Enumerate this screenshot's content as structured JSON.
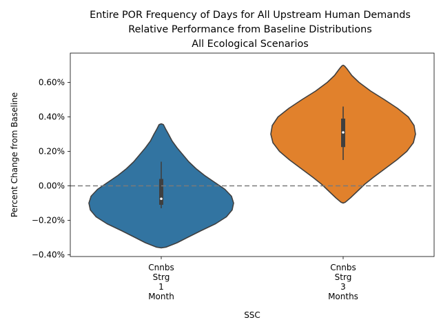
{
  "chart_data": {
    "type": "violin",
    "title_lines": [
      "Entire POR Frequency of Days for All Upstream Human Demands",
      "Relative Performance from Baseline Distributions",
      "All Ecological Scenarios"
    ],
    "xlabel": "SSC",
    "ylabel": "Percent Change from Baseline",
    "ylim": [
      -0.41,
      0.77
    ],
    "yticks": [
      -0.4,
      -0.2,
      0.0,
      0.2,
      0.4,
      0.6
    ],
    "ytick_labels": [
      "−0.40%",
      "−0.20%",
      "0.00%",
      "0.20%",
      "0.40%",
      "0.60%"
    ],
    "reference_line": 0.0,
    "categories": [
      {
        "label_lines": [
          "Cnnbs",
          "Strg",
          "1",
          "Month"
        ],
        "color": "#3274a1",
        "min": -0.13,
        "q1": -0.11,
        "median": -0.075,
        "q3": 0.04,
        "max": 0.14,
        "violin_profile": [
          [
            -0.36,
            0.0
          ],
          [
            -0.355,
            0.07
          ],
          [
            -0.33,
            0.22
          ],
          [
            -0.3,
            0.36
          ],
          [
            -0.26,
            0.55
          ],
          [
            -0.22,
            0.75
          ],
          [
            -0.18,
            0.9
          ],
          [
            -0.14,
            0.98
          ],
          [
            -0.1,
            1.0
          ],
          [
            -0.06,
            0.97
          ],
          [
            -0.02,
            0.88
          ],
          [
            0.02,
            0.74
          ],
          [
            0.06,
            0.6
          ],
          [
            0.1,
            0.48
          ],
          [
            0.14,
            0.38
          ],
          [
            0.18,
            0.3
          ],
          [
            0.22,
            0.22
          ],
          [
            0.26,
            0.15
          ],
          [
            0.3,
            0.1
          ],
          [
            0.33,
            0.06
          ],
          [
            0.355,
            0.03
          ],
          [
            0.36,
            0.0
          ]
        ]
      },
      {
        "label_lines": [
          "Cnnbs",
          "Strg",
          "3",
          "Months"
        ],
        "color": "#e1812c",
        "min": 0.15,
        "q1": 0.225,
        "median": 0.31,
        "q3": 0.39,
        "max": 0.46,
        "violin_profile": [
          [
            -0.1,
            0.0
          ],
          [
            -0.095,
            0.03
          ],
          [
            -0.07,
            0.1
          ],
          [
            -0.03,
            0.2
          ],
          [
            0.01,
            0.3
          ],
          [
            0.05,
            0.42
          ],
          [
            0.1,
            0.58
          ],
          [
            0.15,
            0.74
          ],
          [
            0.2,
            0.88
          ],
          [
            0.25,
            0.97
          ],
          [
            0.3,
            1.0
          ],
          [
            0.35,
            0.98
          ],
          [
            0.4,
            0.9
          ],
          [
            0.45,
            0.75
          ],
          [
            0.5,
            0.57
          ],
          [
            0.55,
            0.38
          ],
          [
            0.6,
            0.22
          ],
          [
            0.64,
            0.12
          ],
          [
            0.68,
            0.05
          ],
          [
            0.695,
            0.02
          ],
          [
            0.7,
            0.0
          ]
        ]
      }
    ],
    "grid": false,
    "legend": "none"
  }
}
